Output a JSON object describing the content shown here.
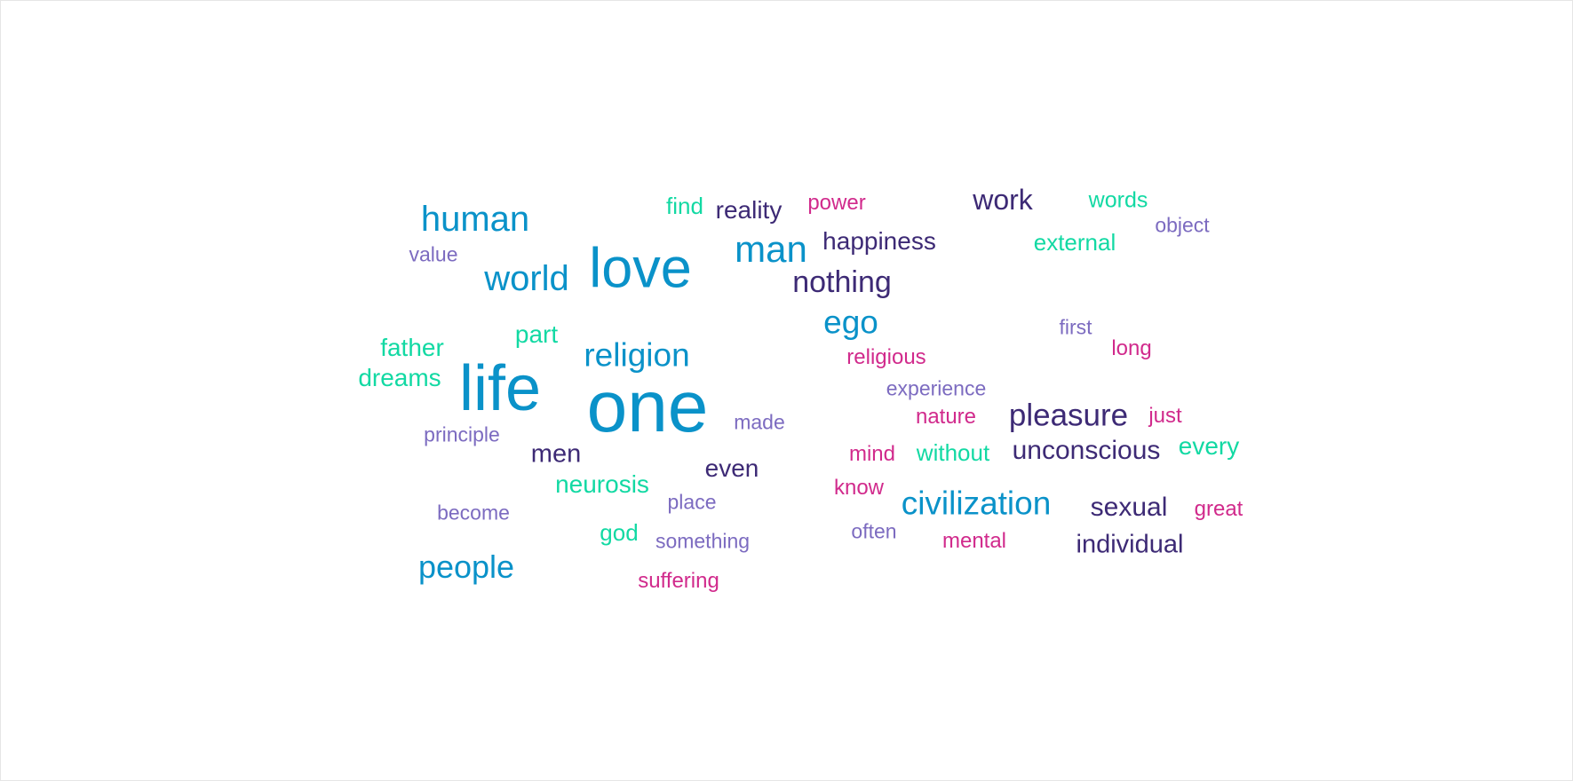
{
  "word_cloud": {
    "words": {
      "one": "one",
      "life": "life",
      "love": "love",
      "man": "man",
      "human": "human",
      "world": "world",
      "religion": "religion",
      "civilization": "civilization",
      "people": "people",
      "ego": "ego",
      "pleasure": "pleasure",
      "nothing": "nothing",
      "work": "work",
      "happiness": "happiness",
      "unconscious": "unconscious",
      "sexual": "sexual",
      "individual": "individual",
      "reality": "reality",
      "men": "men",
      "even": "even",
      "find": "find",
      "words": "words",
      "external": "external",
      "part": "part",
      "father": "father",
      "dreams": "dreams",
      "neurosis": "neurosis",
      "every": "every",
      "without": "without",
      "god": "god",
      "power": "power",
      "religious": "religious",
      "long": "long",
      "nature": "nature",
      "just": "just",
      "mind": "mind",
      "know": "know",
      "great": "great",
      "mental": "mental",
      "suffering": "suffering",
      "object": "object",
      "value": "value",
      "first": "first",
      "experience": "experience",
      "made": "made",
      "principle": "principle",
      "place": "place",
      "become": "become",
      "often": "often",
      "something": "something"
    },
    "colors": {
      "blue": "#0a92c9",
      "teal": "#12d9a3",
      "navy": "#3d2a75",
      "pink": "#d12a8c",
      "purple": "#7c6bc0"
    }
  }
}
